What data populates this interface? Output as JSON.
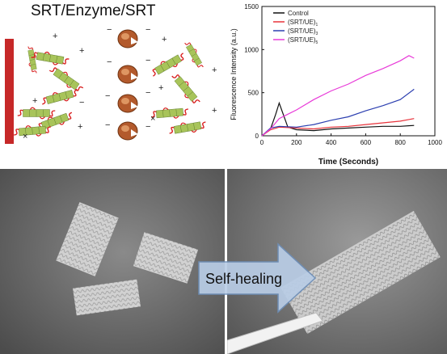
{
  "schematic": {
    "title": "SRT/Enzyme/SRT",
    "colors": {
      "substrate": "#c62828",
      "fiber_green": "#a8c45a",
      "fiber_red": "#d81b1b",
      "enzyme": "#b35a2c"
    }
  },
  "arrow": {
    "label": "Self-healing",
    "color": "#b9cde6"
  },
  "chart_data": {
    "type": "line",
    "xlabel": "Time (Seconds)",
    "ylabel": "Fluorescence Intensity (a.u.)",
    "xlim": [
      0,
      1000
    ],
    "ylim": [
      0,
      1500
    ],
    "xticks": [
      0,
      200,
      400,
      600,
      800,
      1000
    ],
    "yticks": [
      0,
      500,
      1000,
      1500
    ],
    "legend_position": "top-left",
    "series": [
      {
        "name": "Control",
        "color": "#111111",
        "x": [
          0,
          50,
          80,
          100,
          150,
          200,
          300,
          400,
          500,
          600,
          700,
          800,
          880
        ],
        "y": [
          0,
          80,
          250,
          380,
          100,
          70,
          60,
          80,
          90,
          100,
          110,
          110,
          120
        ]
      },
      {
        "name": "(SRT/UE)1",
        "color": "#e8333b",
        "x": [
          0,
          50,
          100,
          200,
          300,
          400,
          500,
          600,
          700,
          800,
          880
        ],
        "y": [
          0,
          70,
          100,
          90,
          80,
          100,
          110,
          130,
          150,
          170,
          200
        ]
      },
      {
        "name": "(SRT/UE)3",
        "color": "#2c3fb0",
        "x": [
          0,
          50,
          100,
          200,
          300,
          400,
          500,
          600,
          700,
          800,
          880
        ],
        "y": [
          0,
          90,
          110,
          100,
          130,
          180,
          220,
          290,
          350,
          420,
          540
        ]
      },
      {
        "name": "(SRT/UE)5",
        "color": "#e83ad8",
        "x": [
          0,
          50,
          100,
          150,
          200,
          300,
          400,
          500,
          600,
          700,
          800,
          850,
          880
        ],
        "y": [
          0,
          80,
          200,
          250,
          300,
          420,
          520,
          600,
          700,
          780,
          870,
          930,
          900
        ]
      }
    ]
  },
  "legend_labels": {
    "control": "Control",
    "s1": "(SRT/UE)",
    "s1_sub": "1",
    "s3": "(SRT/UE)",
    "s3_sub": "3",
    "s5": "(SRT/UE)",
    "s5_sub": "5"
  }
}
